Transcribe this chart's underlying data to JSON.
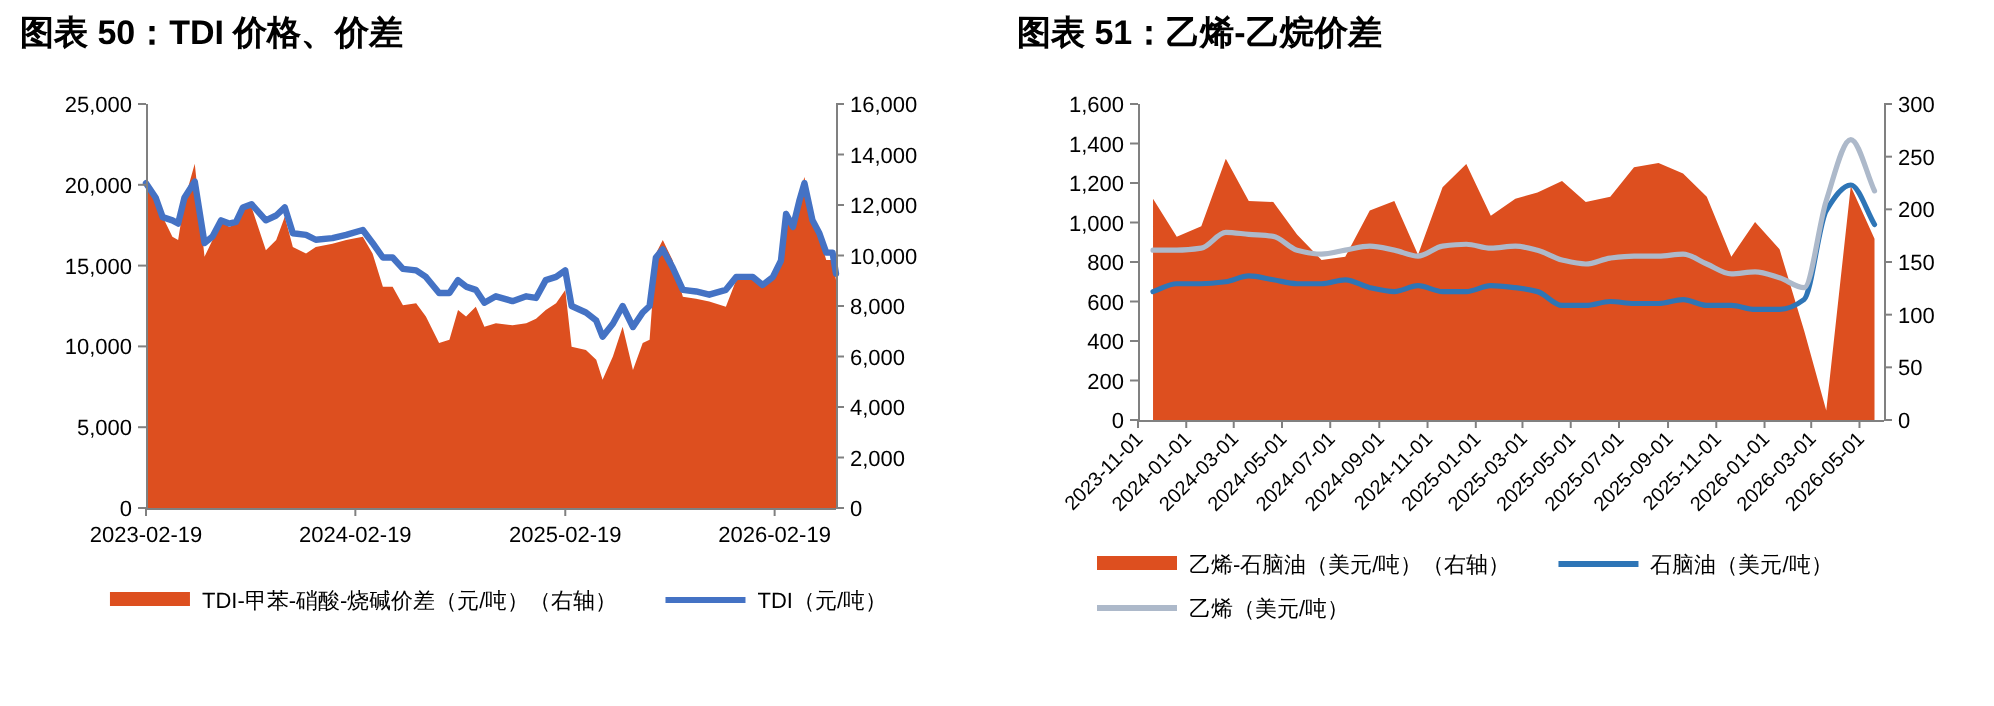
{
  "chart_data": [
    {
      "type": "area",
      "title": "图表 50：TDI 价格、价差",
      "x": [
        "2023-02-19",
        "2023-03-08",
        "2023-03-20",
        "2023-04-06",
        "2023-04-16",
        "2023-04-27",
        "2023-05-15",
        "2023-06-01",
        "2023-06-15",
        "2023-06-30",
        "2023-07-14",
        "2023-07-26",
        "2023-08-07",
        "2023-08-22",
        "2023-09-16",
        "2023-10-04",
        "2023-10-19",
        "2023-11-02",
        "2023-11-25",
        "2023-12-12",
        "2024-01-10",
        "2024-02-03",
        "2024-03-03",
        "2024-03-20",
        "2024-04-07",
        "2024-04-24",
        "2024-05-12",
        "2024-06-04",
        "2024-06-21",
        "2024-07-14",
        "2024-08-01",
        "2024-08-16",
        "2024-08-30",
        "2024-09-16",
        "2024-10-01",
        "2024-10-21",
        "2024-11-19",
        "2024-12-13",
        "2024-12-30",
        "2025-01-16",
        "2025-02-03",
        "2025-02-19",
        "2025-03-02",
        "2025-03-27",
        "2025-04-14",
        "2025-04-25",
        "2025-05-13",
        "2025-05-30",
        "2025-06-17",
        "2025-07-04",
        "2025-07-16",
        "2025-07-27",
        "2025-08-08",
        "2025-08-25",
        "2025-09-12",
        "2025-10-05",
        "2025-10-28",
        "2025-11-26",
        "2025-12-14",
        "2026-01-12",
        "2026-01-29",
        "2026-02-16",
        "2026-03-02",
        "2026-03-11",
        "2026-03-23",
        "2026-04-03",
        "2026-04-12",
        "2026-04-26",
        "2026-05-08",
        "2026-05-20",
        "2026-05-31",
        "2026-06-06"
      ],
      "xlim": [
        "2023-02-19",
        "2026-06-06"
      ],
      "xticks": [
        "2023-02-19",
        "2024-02-19",
        "2025-02-19",
        "2026-02-19"
      ],
      "ylim": [
        0,
        25000
      ],
      "yticks": [
        0,
        {
          "value": 5000,
          "label": "5,000"
        },
        {
          "value": 10000,
          "label": "10,000"
        },
        {
          "value": 15000,
          "label": "15,000"
        },
        {
          "value": 20000,
          "label": "20,000"
        },
        {
          "value": 25000,
          "label": "25,000"
        }
      ],
      "y2lim": [
        0,
        16000
      ],
      "y2ticks": [
        0,
        {
          "value": 2000,
          "label": "2,000"
        },
        {
          "value": 4000,
          "label": "4,000"
        },
        {
          "value": 6000,
          "label": "6,000"
        },
        {
          "value": 8000,
          "label": "8,000"
        },
        {
          "value": 10000,
          "label": "10,000"
        },
        {
          "value": 12000,
          "label": "12,000"
        },
        {
          "value": 14000,
          "label": "14,000"
        },
        {
          "value": 16000,
          "label": "16,000"
        }
      ],
      "legend": "bottom",
      "series": [
        {
          "name": "TDI-甲苯-硝酸-烧碱价差（元/吨）（右轴）",
          "type": "area",
          "axis": "y2",
          "color": "#dd4f1f",
          "values": [
            12840,
            12050,
            11530,
            10740,
            10610,
            12180,
            13630,
            9950,
            10610,
            11390,
            11130,
            11260,
            11920,
            11920,
            10210,
            10610,
            11530,
            10340,
            10080,
            10340,
            10470,
            10610,
            10740,
            10080,
            8760,
            8760,
            8030,
            8110,
            7580,
            6530,
            6660,
            7840,
            7580,
            7970,
            7180,
            7320,
            7240,
            7320,
            7500,
            7840,
            8110,
            8630,
            6390,
            6260,
            5870,
            5080,
            6000,
            7180,
            5470,
            6530,
            6660,
            10080,
            10610,
            9820,
            8370,
            8290,
            8180,
            7970,
            9030,
            9030,
            8760,
            9290,
            9950,
            11790,
            11130,
            12450,
            13110,
            11390,
            10740,
            9820,
            9820,
            9030
          ]
        },
        {
          "name": "TDI（元/吨）",
          "type": "line",
          "color": "#4472c4",
          "values": [
            20100,
            19200,
            18000,
            17800,
            17600,
            19200,
            20200,
            16400,
            16800,
            17800,
            17600,
            17700,
            18600,
            18800,
            17800,
            18100,
            18600,
            17000,
            16900,
            16600,
            16700,
            16900,
            17200,
            16400,
            15500,
            15500,
            14800,
            14700,
            14300,
            13300,
            13300,
            14100,
            13700,
            13500,
            12700,
            13100,
            12800,
            13100,
            13000,
            14100,
            14300,
            14700,
            12500,
            12100,
            11600,
            10600,
            11400,
            12500,
            11200,
            12100,
            12500,
            15500,
            16000,
            14900,
            13500,
            13400,
            13200,
            13500,
            14300,
            14300,
            13800,
            14300,
            15300,
            18200,
            17400,
            19000,
            20100,
            17800,
            17000,
            15800,
            15800,
            14500
          ]
        }
      ]
    },
    {
      "type": "area",
      "title": "图表 51：乙烯-乙烷价差",
      "x": [
        "2023-11-20",
        "2023-12-20",
        "2024-01-20",
        "2024-02-20",
        "2024-03-20",
        "2024-04-20",
        "2024-05-20",
        "2024-06-20",
        "2024-07-20",
        "2024-08-20",
        "2024-09-20",
        "2024-10-20",
        "2024-11-20",
        "2024-12-20",
        "2025-01-20",
        "2025-02-20",
        "2025-03-20",
        "2025-04-20",
        "2025-05-20",
        "2025-06-20",
        "2025-07-20",
        "2025-08-20",
        "2025-09-20",
        "2025-10-20",
        "2025-11-20",
        "2025-12-20",
        "2026-01-20",
        "2026-02-20",
        "2026-03-20",
        "2026-04-20",
        "2026-05-20"
      ],
      "xlim": [
        "2023-11-01",
        "2026-06-01"
      ],
      "xticks": [
        "2023-11-01",
        "2024-01-01",
        "2024-03-01",
        "2024-05-01",
        "2024-07-01",
        "2024-09-01",
        "2024-11-01",
        "2025-01-01",
        "2025-03-01",
        "2025-05-01",
        "2025-07-01",
        "2025-09-01",
        "2025-11-01",
        "2026-01-01",
        "2026-03-01",
        "2026-05-01"
      ],
      "ylim": [
        0,
        1600
      ],
      "yticks": [
        0,
        200,
        400,
        600,
        800,
        {
          "value": 1000,
          "label": "1,000"
        },
        {
          "value": 1200,
          "label": "1,200"
        },
        {
          "value": 1400,
          "label": "1,400"
        },
        {
          "value": 1600,
          "label": "1,600"
        }
      ],
      "y2lim": [
        0,
        300
      ],
      "y2ticks": [
        0,
        50,
        100,
        150,
        200,
        250,
        300
      ],
      "legend": "bottom",
      "series": [
        {
          "name": "乙烯-石脑油（美元/吨）（右轴）",
          "type": "area",
          "axis": "y2",
          "color": "#dd4f1f",
          "values": [
            210,
            174,
            184,
            248,
            208,
            207,
            176,
            152,
            155,
            199,
            208,
            157,
            221,
            243,
            194,
            210,
            216,
            227,
            207,
            212,
            240,
            244,
            234,
            212,
            155,
            188,
            162,
            85,
            9,
            222,
            172
          ]
        },
        {
          "name": "石脑油（美元/吨）",
          "type": "line",
          "color": "#2e75b6",
          "values": [
            650,
            690,
            690,
            700,
            730,
            710,
            690,
            690,
            710,
            670,
            650,
            680,
            650,
            650,
            680,
            670,
            650,
            580,
            580,
            600,
            590,
            590,
            610,
            580,
            580,
            560,
            560,
            610,
            1060,
            1190,
            990
          ]
        },
        {
          "name": "乙烯（美元/吨）",
          "type": "line",
          "color": "#adb9ca",
          "values": [
            860,
            860,
            870,
            950,
            940,
            930,
            860,
            840,
            860,
            880,
            860,
            830,
            880,
            890,
            870,
            880,
            860,
            810,
            790,
            820,
            830,
            830,
            840,
            790,
            740,
            750,
            720,
            670,
            1110,
            1420,
            1160
          ]
        }
      ]
    }
  ]
}
